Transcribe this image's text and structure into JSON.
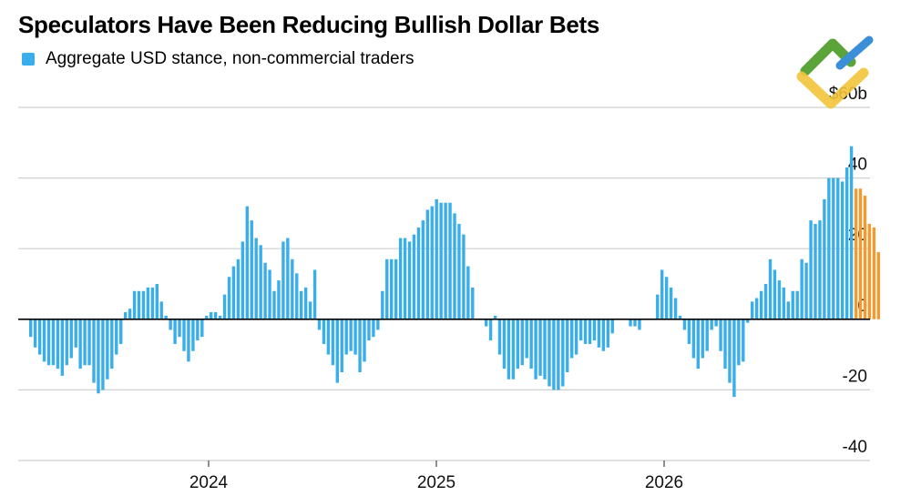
{
  "title": "Speculators Have Been Reducing Bullish Dollar Bets",
  "legend": {
    "label": "Aggregate USD stance, non-commercial traders"
  },
  "colors": {
    "bar": "#3aaeea",
    "recent_bar": "#f29a2e",
    "grid": "#cfcfcf",
    "zero_line": "#000000"
  },
  "logo": {
    "icon": "logo-icon"
  },
  "chart_data": {
    "type": "bar",
    "title": "Speculators Have Been Reducing Bullish Dollar Bets",
    "series": [
      {
        "name": "Aggregate USD stance, non-commercial traders",
        "values": [
          -5,
          -8,
          -10,
          -12,
          -13,
          -13,
          -14,
          -16,
          -13,
          -11,
          -8,
          -14,
          -13,
          -13,
          -18,
          -21,
          -20,
          -17,
          -14,
          -10,
          -7,
          2,
          3,
          8,
          8,
          8,
          9,
          9,
          10,
          5,
          1,
          -3,
          -7,
          -5,
          -9,
          -12,
          -9,
          -6,
          -5,
          1,
          2,
          2,
          1,
          7,
          12,
          15,
          17,
          22,
          32,
          28,
          23,
          21,
          16,
          14,
          8,
          11,
          22,
          23,
          17,
          13,
          8,
          9,
          5,
          14,
          -3,
          -7,
          -10,
          -13,
          -18,
          -15,
          -10,
          -9,
          -10,
          -15,
          -12,
          -6,
          -5,
          -3,
          8,
          17,
          17,
          17,
          23,
          23,
          22,
          24,
          26,
          28,
          31,
          32,
          34,
          33,
          33,
          33,
          30,
          27,
          24,
          15,
          9,
          0,
          0,
          -2,
          -6,
          1,
          -10,
          -14,
          -17,
          -17,
          -14,
          -13,
          -11,
          -14,
          -17,
          -16,
          -17,
          -19,
          -20,
          -20,
          -19,
          -15,
          -11,
          -10,
          -6,
          -7,
          -7,
          -6,
          -8,
          -9,
          -8,
          -4,
          0,
          0,
          0,
          -2,
          -2,
          -3,
          0,
          0,
          0,
          7,
          14,
          12,
          9,
          6,
          1,
          -3,
          -7,
          -11,
          -14,
          -11,
          -9,
          -3,
          -2,
          -9,
          -14,
          -18,
          -22,
          -13,
          -12,
          -1,
          5,
          6,
          8,
          10,
          17,
          14,
          11,
          9,
          5,
          8,
          8,
          17,
          16,
          28,
          27,
          28,
          34,
          40,
          40,
          40,
          39,
          43,
          49
        ],
        "color": "#3aaeea"
      },
      {
        "name": "",
        "values": [
          37,
          37,
          35,
          27,
          26,
          19
        ],
        "color": "#f29a2e"
      }
    ],
    "x_ticks": [
      "2024",
      "2025",
      "2026"
    ],
    "y_ticks": [
      "-40",
      "-20",
      "0",
      "20",
      "40",
      "$60b"
    ],
    "ylim": [
      -40,
      60
    ],
    "grid": true,
    "legend_position": "top-left",
    "xlabel": "",
    "ylabel": ""
  }
}
